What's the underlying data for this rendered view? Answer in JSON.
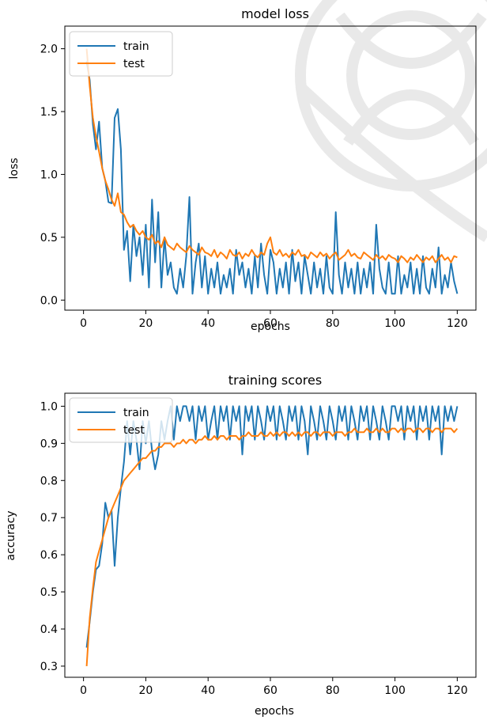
{
  "chart_data": [
    {
      "type": "line",
      "title": "model loss",
      "xlabel": "epochs",
      "ylabel": "loss",
      "xlim": [
        -6,
        126
      ],
      "ylim": [
        -0.08,
        2.18
      ],
      "xticks": [
        0,
        20,
        40,
        60,
        80,
        100,
        120
      ],
      "yticks": [
        0.0,
        0.5,
        1.0,
        1.5,
        2.0
      ],
      "ytick_labels": [
        "0.0",
        "0.5",
        "1.0",
        "1.5",
        "2.0"
      ],
      "legend_position": "top-left",
      "grid": false,
      "series": [
        {
          "name": "train",
          "color": "#1f77b4",
          "x": [
            1,
            2,
            3,
            4,
            5,
            6,
            7,
            8,
            9,
            10,
            11,
            12,
            13,
            14,
            15,
            16,
            17,
            18,
            19,
            20,
            21,
            22,
            23,
            24,
            25,
            26,
            27,
            28,
            29,
            30,
            31,
            32,
            33,
            34,
            35,
            36,
            37,
            38,
            39,
            40,
            41,
            42,
            43,
            44,
            45,
            46,
            47,
            48,
            49,
            50,
            51,
            52,
            53,
            54,
            55,
            56,
            57,
            58,
            59,
            60,
            61,
            62,
            63,
            64,
            65,
            66,
            67,
            68,
            69,
            70,
            71,
            72,
            73,
            74,
            75,
            76,
            77,
            78,
            79,
            80,
            81,
            82,
            83,
            84,
            85,
            86,
            87,
            88,
            89,
            90,
            91,
            92,
            93,
            94,
            95,
            96,
            97,
            98,
            99,
            100,
            101,
            102,
            103,
            104,
            105,
            106,
            107,
            108,
            109,
            110,
            111,
            112,
            113,
            114,
            115,
            116,
            117,
            118,
            119,
            120
          ],
          "y": [
            1.9,
            1.75,
            1.4,
            1.2,
            1.42,
            1.05,
            0.95,
            0.78,
            0.77,
            1.45,
            1.52,
            1.2,
            0.4,
            0.55,
            0.15,
            0.6,
            0.35,
            0.5,
            0.2,
            0.6,
            0.1,
            0.8,
            0.3,
            0.7,
            0.1,
            0.5,
            0.2,
            0.3,
            0.1,
            0.05,
            0.25,
            0.1,
            0.35,
            0.82,
            0.05,
            0.3,
            0.45,
            0.1,
            0.35,
            0.05,
            0.25,
            0.1,
            0.3,
            0.05,
            0.2,
            0.1,
            0.25,
            0.05,
            0.4,
            0.2,
            0.3,
            0.1,
            0.25,
            0.05,
            0.35,
            0.1,
            0.45,
            0.2,
            0.05,
            0.4,
            0.3,
            0.05,
            0.25,
            0.1,
            0.3,
            0.05,
            0.4,
            0.15,
            0.3,
            0.05,
            0.35,
            0.2,
            0.05,
            0.3,
            0.1,
            0.25,
            0.05,
            0.35,
            0.1,
            0.05,
            0.7,
            0.2,
            0.05,
            0.3,
            0.1,
            0.25,
            0.05,
            0.3,
            0.05,
            0.25,
            0.1,
            0.3,
            0.05,
            0.6,
            0.25,
            0.1,
            0.05,
            0.3,
            0.05,
            0.05,
            0.35,
            0.05,
            0.2,
            0.1,
            0.3,
            0.05,
            0.25,
            0.05,
            0.35,
            0.1,
            0.05,
            0.25,
            0.1,
            0.42,
            0.05,
            0.2,
            0.1,
            0.3,
            0.15,
            0.05
          ]
        },
        {
          "name": "test",
          "color": "#ff7f0e",
          "x": [
            1,
            2,
            3,
            4,
            5,
            6,
            7,
            8,
            9,
            10,
            11,
            12,
            13,
            14,
            15,
            16,
            17,
            18,
            19,
            20,
            21,
            22,
            23,
            24,
            25,
            26,
            27,
            28,
            29,
            30,
            31,
            32,
            33,
            34,
            35,
            36,
            37,
            38,
            39,
            40,
            41,
            42,
            43,
            44,
            45,
            46,
            47,
            48,
            49,
            50,
            51,
            52,
            53,
            54,
            55,
            56,
            57,
            58,
            59,
            60,
            61,
            62,
            63,
            64,
            65,
            66,
            67,
            68,
            69,
            70,
            71,
            72,
            73,
            74,
            75,
            76,
            77,
            78,
            79,
            80,
            81,
            82,
            83,
            84,
            85,
            86,
            87,
            88,
            89,
            90,
            91,
            92,
            93,
            94,
            95,
            96,
            97,
            98,
            99,
            100,
            101,
            102,
            103,
            104,
            105,
            106,
            107,
            108,
            109,
            110,
            111,
            112,
            113,
            114,
            115,
            116,
            117,
            118,
            119,
            120
          ],
          "y": [
            2.0,
            1.7,
            1.45,
            1.3,
            1.18,
            1.05,
            0.95,
            0.88,
            0.8,
            0.75,
            0.85,
            0.7,
            0.68,
            0.62,
            0.58,
            0.6,
            0.55,
            0.52,
            0.55,
            0.5,
            0.48,
            0.52,
            0.45,
            0.47,
            0.42,
            0.5,
            0.44,
            0.42,
            0.4,
            0.45,
            0.42,
            0.4,
            0.38,
            0.43,
            0.4,
            0.38,
            0.36,
            0.42,
            0.38,
            0.37,
            0.35,
            0.4,
            0.34,
            0.38,
            0.36,
            0.33,
            0.4,
            0.36,
            0.35,
            0.38,
            0.33,
            0.37,
            0.35,
            0.4,
            0.36,
            0.34,
            0.38,
            0.36,
            0.45,
            0.5,
            0.38,
            0.36,
            0.4,
            0.35,
            0.37,
            0.34,
            0.38,
            0.36,
            0.4,
            0.35,
            0.36,
            0.33,
            0.38,
            0.36,
            0.34,
            0.38,
            0.35,
            0.37,
            0.33,
            0.36,
            0.38,
            0.32,
            0.34,
            0.36,
            0.4,
            0.35,
            0.37,
            0.34,
            0.33,
            0.38,
            0.36,
            0.34,
            0.32,
            0.36,
            0.33,
            0.35,
            0.32,
            0.36,
            0.34,
            0.33,
            0.3,
            0.35,
            0.33,
            0.3,
            0.34,
            0.32,
            0.36,
            0.33,
            0.3,
            0.34,
            0.32,
            0.35,
            0.3,
            0.33,
            0.36,
            0.32,
            0.34,
            0.3,
            0.35,
            0.34
          ]
        }
      ]
    },
    {
      "type": "line",
      "title": "training scores",
      "xlabel": "epochs",
      "ylabel": "accuracy",
      "xlim": [
        -6,
        126
      ],
      "ylim": [
        0.27,
        1.035
      ],
      "xticks": [
        0,
        20,
        40,
        60,
        80,
        100,
        120
      ],
      "yticks": [
        0.3,
        0.4,
        0.5,
        0.6,
        0.7,
        0.8,
        0.9,
        1.0
      ],
      "ytick_labels": [
        "0.3",
        "0.4",
        "0.5",
        "0.6",
        "0.7",
        "0.8",
        "0.9",
        "1.0"
      ],
      "legend_position": "top-left",
      "grid": false,
      "series": [
        {
          "name": "train",
          "color": "#1f77b4",
          "x": [
            1,
            2,
            3,
            4,
            5,
            6,
            7,
            8,
            9,
            10,
            11,
            12,
            13,
            14,
            15,
            16,
            17,
            18,
            19,
            20,
            21,
            22,
            23,
            24,
            25,
            26,
            27,
            28,
            29,
            30,
            31,
            32,
            33,
            34,
            35,
            36,
            37,
            38,
            39,
            40,
            41,
            42,
            43,
            44,
            45,
            46,
            47,
            48,
            49,
            50,
            51,
            52,
            53,
            54,
            55,
            56,
            57,
            58,
            59,
            60,
            61,
            62,
            63,
            64,
            65,
            66,
            67,
            68,
            69,
            70,
            71,
            72,
            73,
            74,
            75,
            76,
            77,
            78,
            79,
            80,
            81,
            82,
            83,
            84,
            85,
            86,
            87,
            88,
            89,
            90,
            91,
            92,
            93,
            94,
            95,
            96,
            97,
            98,
            99,
            100,
            101,
            102,
            103,
            104,
            105,
            106,
            107,
            108,
            109,
            110,
            111,
            112,
            113,
            114,
            115,
            116,
            117,
            118,
            119,
            120
          ],
          "y": [
            0.35,
            0.42,
            0.5,
            0.56,
            0.57,
            0.63,
            0.74,
            0.7,
            0.72,
            0.57,
            0.7,
            0.78,
            0.85,
            0.96,
            0.87,
            0.96,
            0.91,
            0.83,
            0.96,
            0.9,
            0.96,
            0.88,
            0.83,
            0.87,
            0.96,
            0.91,
            0.96,
            1.0,
            0.91,
            1.0,
            0.96,
            1.0,
            1.0,
            0.96,
            1.0,
            0.91,
            1.0,
            0.96,
            1.0,
            0.91,
            0.96,
            1.0,
            0.91,
            1.0,
            0.96,
            1.0,
            0.91,
            1.0,
            0.96,
            1.0,
            0.87,
            1.0,
            0.96,
            1.0,
            0.91,
            1.0,
            0.96,
            0.91,
            1.0,
            0.96,
            1.0,
            0.91,
            1.0,
            0.96,
            0.91,
            1.0,
            0.96,
            1.0,
            0.91,
            1.0,
            0.96,
            0.87,
            1.0,
            0.96,
            0.91,
            1.0,
            0.96,
            0.91,
            1.0,
            0.96,
            0.91,
            1.0,
            0.96,
            1.0,
            0.91,
            1.0,
            0.96,
            0.91,
            1.0,
            0.96,
            1.0,
            0.91,
            1.0,
            0.96,
            0.91,
            1.0,
            0.96,
            0.91,
            1.0,
            1.0,
            0.96,
            1.0,
            0.91,
            1.0,
            0.96,
            1.0,
            0.91,
            1.0,
            0.96,
            1.0,
            0.91,
            1.0,
            0.96,
            1.0,
            0.87,
            1.0,
            0.96,
            1.0,
            0.96,
            1.0
          ]
        },
        {
          "name": "test",
          "color": "#ff7f0e",
          "x": [
            1,
            2,
            3,
            4,
            5,
            6,
            7,
            8,
            9,
            10,
            11,
            12,
            13,
            14,
            15,
            16,
            17,
            18,
            19,
            20,
            21,
            22,
            23,
            24,
            25,
            26,
            27,
            28,
            29,
            30,
            31,
            32,
            33,
            34,
            35,
            36,
            37,
            38,
            39,
            40,
            41,
            42,
            43,
            44,
            45,
            46,
            47,
            48,
            49,
            50,
            51,
            52,
            53,
            54,
            55,
            56,
            57,
            58,
            59,
            60,
            61,
            62,
            63,
            64,
            65,
            66,
            67,
            68,
            69,
            70,
            71,
            72,
            73,
            74,
            75,
            76,
            77,
            78,
            79,
            80,
            81,
            82,
            83,
            84,
            85,
            86,
            87,
            88,
            89,
            90,
            91,
            92,
            93,
            94,
            95,
            96,
            97,
            98,
            99,
            100,
            101,
            102,
            103,
            104,
            105,
            106,
            107,
            108,
            109,
            110,
            111,
            112,
            113,
            114,
            115,
            116,
            117,
            118,
            119,
            120
          ],
          "y": [
            0.3,
            0.43,
            0.51,
            0.58,
            0.61,
            0.64,
            0.67,
            0.7,
            0.72,
            0.74,
            0.76,
            0.78,
            0.8,
            0.81,
            0.82,
            0.83,
            0.84,
            0.85,
            0.86,
            0.86,
            0.87,
            0.88,
            0.88,
            0.89,
            0.89,
            0.9,
            0.9,
            0.9,
            0.89,
            0.9,
            0.9,
            0.91,
            0.9,
            0.91,
            0.91,
            0.9,
            0.91,
            0.91,
            0.92,
            0.91,
            0.91,
            0.92,
            0.91,
            0.92,
            0.92,
            0.91,
            0.92,
            0.92,
            0.92,
            0.91,
            0.92,
            0.92,
            0.93,
            0.92,
            0.92,
            0.92,
            0.93,
            0.92,
            0.92,
            0.93,
            0.92,
            0.93,
            0.92,
            0.93,
            0.93,
            0.92,
            0.93,
            0.92,
            0.93,
            0.92,
            0.93,
            0.93,
            0.92,
            0.93,
            0.93,
            0.92,
            0.93,
            0.93,
            0.93,
            0.92,
            0.93,
            0.93,
            0.93,
            0.92,
            0.93,
            0.93,
            0.94,
            0.93,
            0.93,
            0.93,
            0.94,
            0.93,
            0.93,
            0.94,
            0.93,
            0.94,
            0.93,
            0.93,
            0.94,
            0.94,
            0.93,
            0.94,
            0.93,
            0.94,
            0.94,
            0.93,
            0.94,
            0.94,
            0.93,
            0.94,
            0.94,
            0.93,
            0.94,
            0.94,
            0.93,
            0.94,
            0.94,
            0.94,
            0.93,
            0.94
          ]
        }
      ]
    }
  ]
}
